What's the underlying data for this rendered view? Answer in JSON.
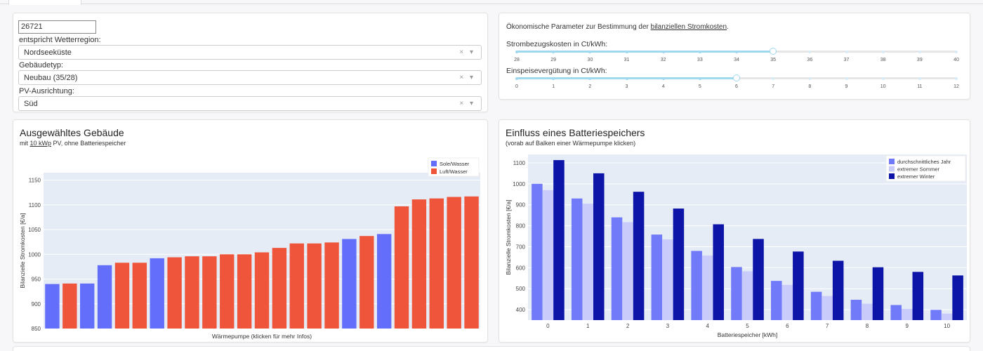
{
  "location": {
    "plz_value": "26721",
    "region_label": "entspricht Wetterregion:",
    "region_value": "Nordseeküste",
    "building_label": "Gebäudetyp:",
    "building_value": "Neubau (35/28)",
    "orientation_label": "PV-Ausrichtung:",
    "orientation_value": "Süd",
    "clear_arrow": "× ▾"
  },
  "economics": {
    "title_prefix": "Ökonomische Parameter zur Bestimmung der ",
    "title_link": "bilanziellen Stromkosten",
    "title_suffix": ".",
    "purchase_label": "Strombezugskosten in Ct/kWh:",
    "purchase_ticks": [
      "28",
      "29",
      "30",
      "31",
      "32",
      "33",
      "34",
      "35",
      "36",
      "37",
      "38",
      "39",
      "40"
    ],
    "purchase_value": 35,
    "feedin_label": "Einspeisevergütung in Ct/kWh:",
    "feedin_ticks": [
      "0",
      "1",
      "2",
      "3",
      "4",
      "5",
      "6",
      "7",
      "8",
      "9",
      "10",
      "11",
      "12"
    ],
    "feedin_value": 6,
    "accent_color": "#9fd8ef"
  },
  "left_chart": {
    "title": "Ausgewähltes Gebäude",
    "subtitle_prefix": "mit ",
    "subtitle_link": "10 kWp",
    "subtitle_suffix": " PV, ohne Batteriespeicher"
  },
  "right_chart": {
    "title": "Einfluss eines Batteriespeichers",
    "subtitle": "(vorab auf Balken einer Wärmepumpe klicken)"
  },
  "chart_data": [
    {
      "type": "bar",
      "xlabel": "Wärmepumpe (klicken für mehr Infos)",
      "ylabel": "Bilanzielle Stromkosten [€/a]",
      "ylim": [
        850,
        1165
      ],
      "yticks": [
        850,
        900,
        950,
        1000,
        1050,
        1100,
        1150
      ],
      "series": [
        {
          "name": "Sole/Wasser",
          "color": "#636efa"
        },
        {
          "name": "Luft/Wasser",
          "color": "#ef553b"
        }
      ],
      "bars": [
        {
          "value": 940,
          "series": 0
        },
        {
          "value": 941,
          "series": 1
        },
        {
          "value": 941,
          "series": 0
        },
        {
          "value": 978,
          "series": 0
        },
        {
          "value": 983,
          "series": 1
        },
        {
          "value": 983,
          "series": 1
        },
        {
          "value": 992,
          "series": 0
        },
        {
          "value": 994,
          "series": 1
        },
        {
          "value": 996,
          "series": 1
        },
        {
          "value": 996,
          "series": 1
        },
        {
          "value": 1000,
          "series": 1
        },
        {
          "value": 1000,
          "series": 1
        },
        {
          "value": 1004,
          "series": 1
        },
        {
          "value": 1013,
          "series": 1
        },
        {
          "value": 1022,
          "series": 1
        },
        {
          "value": 1022,
          "series": 1
        },
        {
          "value": 1024,
          "series": 1
        },
        {
          "value": 1031,
          "series": 0
        },
        {
          "value": 1037,
          "series": 1
        },
        {
          "value": 1041,
          "series": 0
        },
        {
          "value": 1097,
          "series": 1
        },
        {
          "value": 1111,
          "series": 1
        },
        {
          "value": 1113,
          "series": 1
        },
        {
          "value": 1116,
          "series": 1
        },
        {
          "value": 1117,
          "series": 1
        }
      ],
      "legend": "top-right"
    },
    {
      "type": "bar",
      "xlabel": "Batteriespeicher [kWh]",
      "ylabel": "Bilanzielle Stromkosten [€/a]",
      "ylim": [
        350,
        1140
      ],
      "yticks": [
        400,
        500,
        600,
        700,
        800,
        900,
        1000,
        1100
      ],
      "categories": [
        "0",
        "1",
        "2",
        "3",
        "4",
        "5",
        "6",
        "7",
        "8",
        "9",
        "10"
      ],
      "series": [
        {
          "name": "durchschnittliches Jahr",
          "color": "#717af9",
          "values": [
            1000,
            930,
            840,
            758,
            680,
            603,
            537,
            485,
            447,
            422,
            399
          ]
        },
        {
          "name": "extremer Sommer",
          "color": "#c9cbfb",
          "values": [
            970,
            905,
            817,
            735,
            658,
            583,
            518,
            465,
            428,
            403,
            381
          ]
        },
        {
          "name": "extremer Winter",
          "color": "#0d14a8",
          "values": [
            1113,
            1050,
            962,
            882,
            807,
            737,
            677,
            633,
            602,
            580,
            563
          ]
        }
      ],
      "legend": "top-right"
    }
  ]
}
